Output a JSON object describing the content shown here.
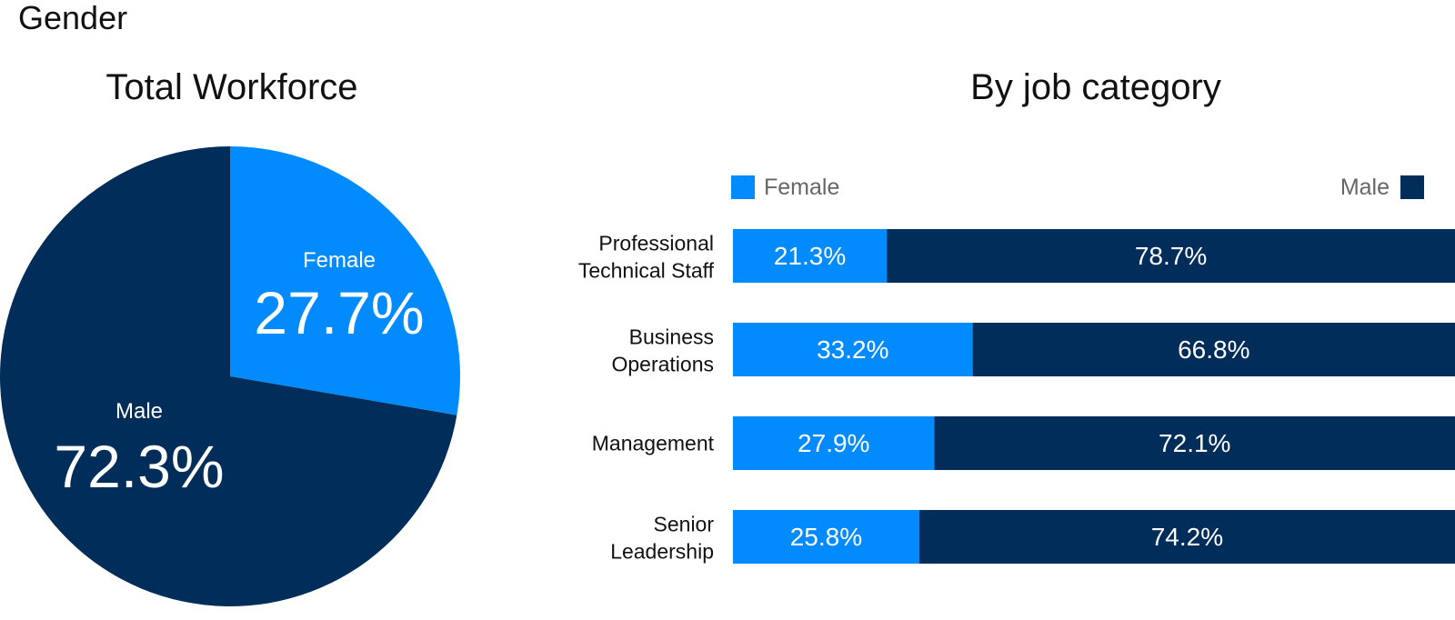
{
  "section_title": "Gender",
  "colors": {
    "female": "#018BFF",
    "male": "#002D5A"
  },
  "chart_data": [
    {
      "type": "pie",
      "title": "Total Workforce",
      "slices": [
        {
          "label": "Female",
          "value": 27.7,
          "display": "27.7%"
        },
        {
          "label": "Male",
          "value": 72.3,
          "display": "72.3%"
        }
      ]
    },
    {
      "type": "bar",
      "orientation": "horizontal",
      "stacked": true,
      "title": "By job category",
      "legend": [
        "Female",
        "Male"
      ],
      "categories": [
        [
          "Professional",
          "Technical Staff"
        ],
        [
          "Business",
          "Operations"
        ],
        [
          "Management"
        ],
        [
          "Senior",
          "Leadership"
        ]
      ],
      "series": [
        {
          "name": "Female",
          "values": [
            21.3,
            33.2,
            27.9,
            25.8
          ],
          "display": [
            "21.3%",
            "33.2%",
            "27.9%",
            "25.8%"
          ]
        },
        {
          "name": "Male",
          "values": [
            78.7,
            66.8,
            72.1,
            74.2
          ],
          "display": [
            "78.7%",
            "66.8%",
            "72.1%",
            "74.2%"
          ]
        }
      ],
      "xlim": [
        0,
        100
      ]
    }
  ]
}
